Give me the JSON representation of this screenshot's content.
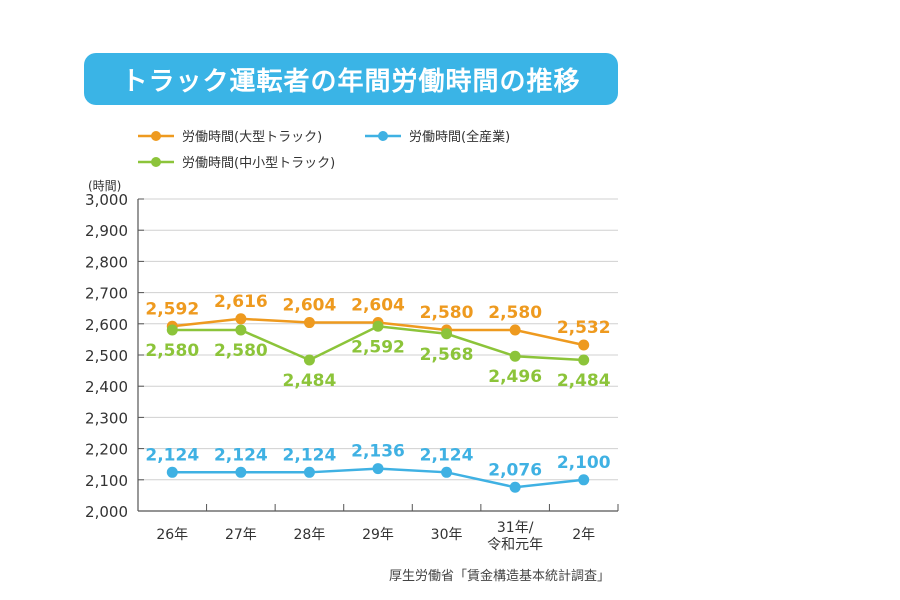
{
  "title": "トラック運転者の年間労働時間の推移",
  "source": "厚生労働省「賃金構造基本統計調査」",
  "chart_data": {
    "type": "line",
    "title": "トラック運転者の年間労働時間の推移",
    "ylabel": "(時間)",
    "xlabel": "",
    "ylim": [
      2000,
      3000
    ],
    "yticks": [
      "3,000",
      "2,900",
      "2,800",
      "2,700",
      "2,600",
      "2,500",
      "2,400",
      "2,300",
      "2,200",
      "2,100",
      "2,000"
    ],
    "grid": true,
    "legend_position": "top-left",
    "categories": [
      "26年",
      "27年",
      "28年",
      "29年",
      "30年",
      "31年/\n令和元年",
      "2年"
    ],
    "series": [
      {
        "name": "労働時間(大型トラック)",
        "color": "#ee9a1f",
        "values": [
          2592,
          2616,
          2604,
          2604,
          2580,
          2580,
          2532
        ],
        "labels": [
          "2,592",
          "2,616",
          "2,604",
          "2,604",
          "2,580",
          "2,580",
          "2,532"
        ]
      },
      {
        "name": "労働時間(全産業)",
        "color": "#3fb1e3",
        "values": [
          2124,
          2124,
          2124,
          2136,
          2124,
          2076,
          2100
        ],
        "labels": [
          "2,124",
          "2,124",
          "2,124",
          "2,136",
          "2,124",
          "2,076",
          "2,100"
        ]
      },
      {
        "name": "労働時間(中小型トラック)",
        "color": "#8cc43a",
        "values": [
          2580,
          2580,
          2484,
          2592,
          2568,
          2496,
          2484
        ],
        "labels": [
          "2,580",
          "2,580",
          "2,484",
          "2,592",
          "2,568",
          "2,496",
          "2,484"
        ]
      }
    ]
  }
}
